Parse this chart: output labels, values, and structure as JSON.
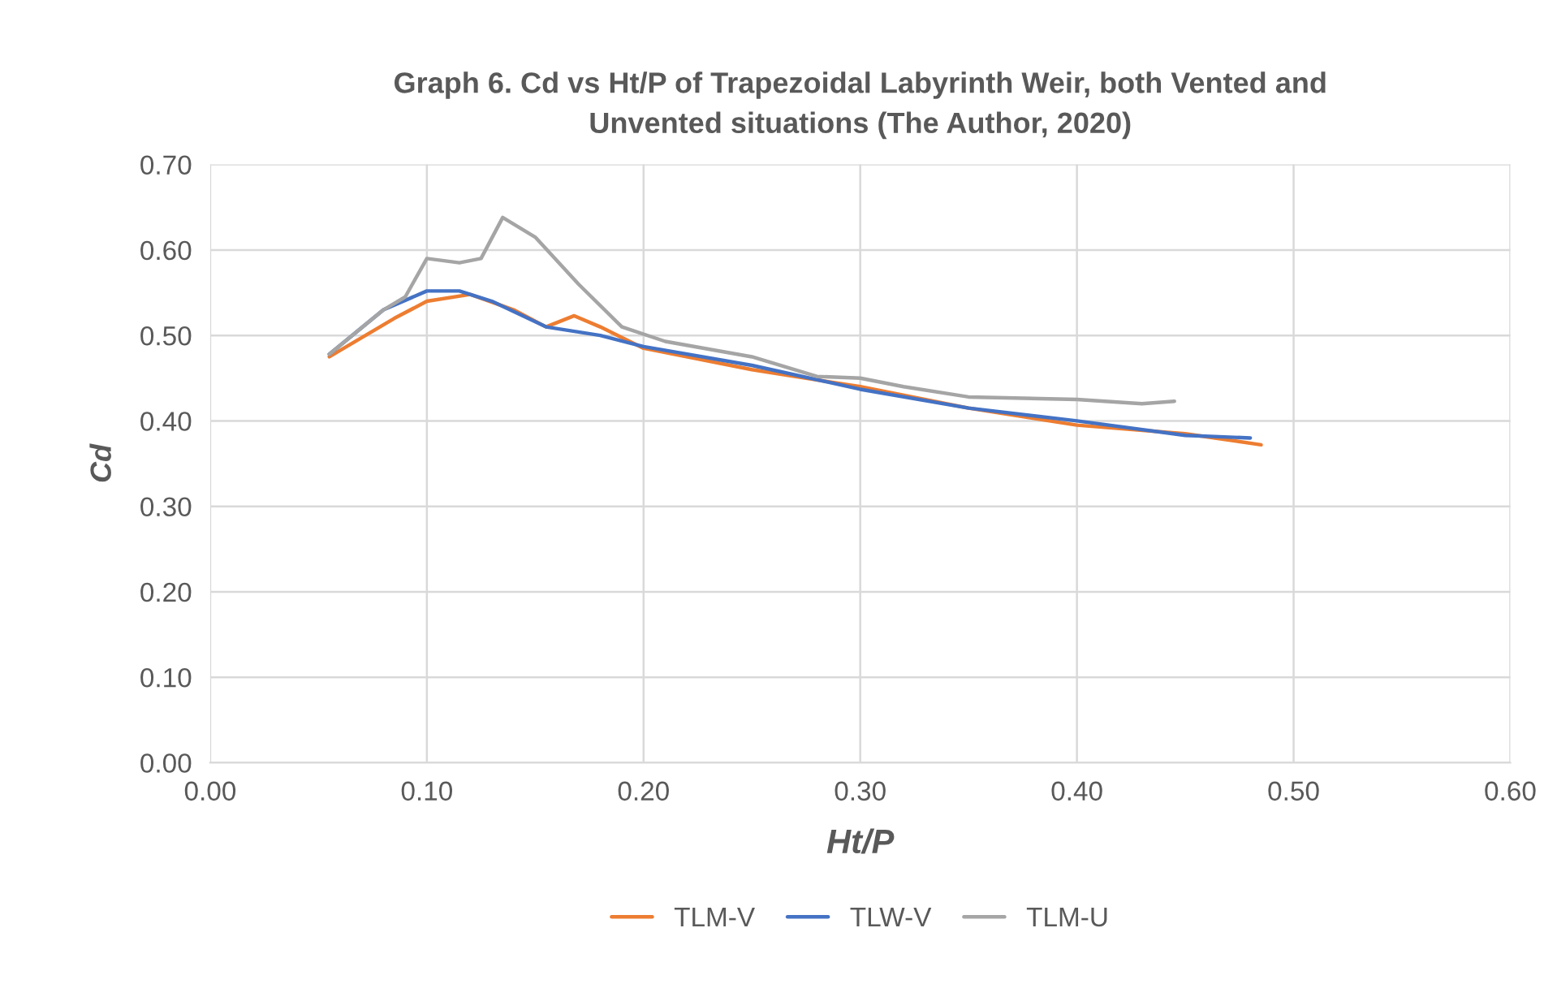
{
  "chart_data": {
    "type": "line",
    "title": "Graph 6. Cd vs Ht/P of Trapezoidal Labyrinth Weir, both Vented and\nUnvented situations (The Author, 2020)",
    "xlabel": "Ht/P",
    "ylabel": "Cd",
    "xlim": [
      0,
      0.6
    ],
    "xticks": [
      {
        "value": 0,
        "label": "0.00"
      },
      {
        "value": 0.1,
        "label": "0.10"
      },
      {
        "value": 0.2,
        "label": "0.20"
      },
      {
        "value": 0.3,
        "label": "0.30"
      },
      {
        "value": 0.4,
        "label": "0.40"
      },
      {
        "value": 0.5,
        "label": "0.50"
      },
      {
        "value": 0.6,
        "label": "0.60"
      }
    ],
    "ylim": [
      0,
      0.7
    ],
    "yticks": [
      {
        "value": 0,
        "label": "0.00"
      },
      {
        "value": 0.1,
        "label": "0.10"
      },
      {
        "value": 0.2,
        "label": "0.20"
      },
      {
        "value": 0.3,
        "label": "0.30"
      },
      {
        "value": 0.4,
        "label": "0.40"
      },
      {
        "value": 0.5,
        "label": "0.50"
      },
      {
        "value": 0.6,
        "label": "0.60"
      },
      {
        "value": 0.7,
        "label": "0.70"
      }
    ],
    "grid": true,
    "legend": "bottom",
    "marker": "none",
    "line_style": "solid",
    "series": [
      {
        "name": "TLM-V",
        "color": "#ed7d31",
        "x": [
          0.055,
          0.085,
          0.1,
          0.12,
          0.14,
          0.155,
          0.168,
          0.18,
          0.2,
          0.25,
          0.3,
          0.35,
          0.4,
          0.45,
          0.485
        ],
        "values": [
          0.475,
          0.52,
          0.54,
          0.548,
          0.53,
          0.51,
          0.523,
          0.51,
          0.485,
          0.46,
          0.44,
          0.415,
          0.395,
          0.385,
          0.372
        ]
      },
      {
        "name": "TLW-V",
        "color": "#4472c4",
        "x": [
          0.055,
          0.08,
          0.1,
          0.115,
          0.13,
          0.155,
          0.18,
          0.2,
          0.25,
          0.3,
          0.35,
          0.4,
          0.45,
          0.48
        ],
        "values": [
          0.478,
          0.53,
          0.552,
          0.552,
          0.54,
          0.51,
          0.5,
          0.487,
          0.465,
          0.437,
          0.415,
          0.4,
          0.383,
          0.38
        ]
      },
      {
        "name": "TLM-U",
        "color": "#a5a5a5",
        "x": [
          0.055,
          0.08,
          0.09,
          0.1,
          0.115,
          0.125,
          0.135,
          0.15,
          0.17,
          0.19,
          0.21,
          0.25,
          0.28,
          0.3,
          0.32,
          0.35,
          0.4,
          0.43,
          0.445
        ],
        "values": [
          0.478,
          0.53,
          0.545,
          0.59,
          0.585,
          0.59,
          0.638,
          0.615,
          0.56,
          0.51,
          0.493,
          0.475,
          0.452,
          0.45,
          0.44,
          0.428,
          0.425,
          0.42,
          0.423
        ]
      }
    ]
  }
}
